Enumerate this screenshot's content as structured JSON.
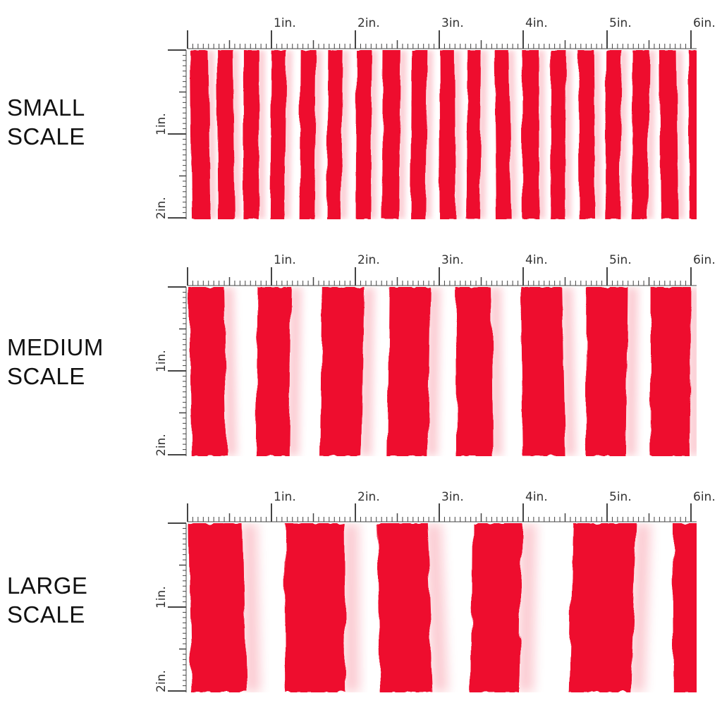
{
  "colors": {
    "stripe": "#ee0a2e",
    "background": "#ffffff",
    "ruler": "#444444"
  },
  "ruler": {
    "top_labels": [
      "1in.",
      "2in.",
      "3in.",
      "4in.",
      "5in.",
      "6in."
    ],
    "side_labels": [
      "1in.",
      "2in."
    ]
  },
  "panels": [
    {
      "id": "small",
      "label_line1": "SMALL",
      "label_line2": "SCALE",
      "stripe_repeat_in": 0.33
    },
    {
      "id": "medium",
      "label_line1": "MEDIUM",
      "label_line2": "SCALE",
      "stripe_repeat_in": 0.8
    },
    {
      "id": "large",
      "label_line1": "LARGE",
      "label_line2": "SCALE",
      "stripe_repeat_in": 1.15
    }
  ]
}
